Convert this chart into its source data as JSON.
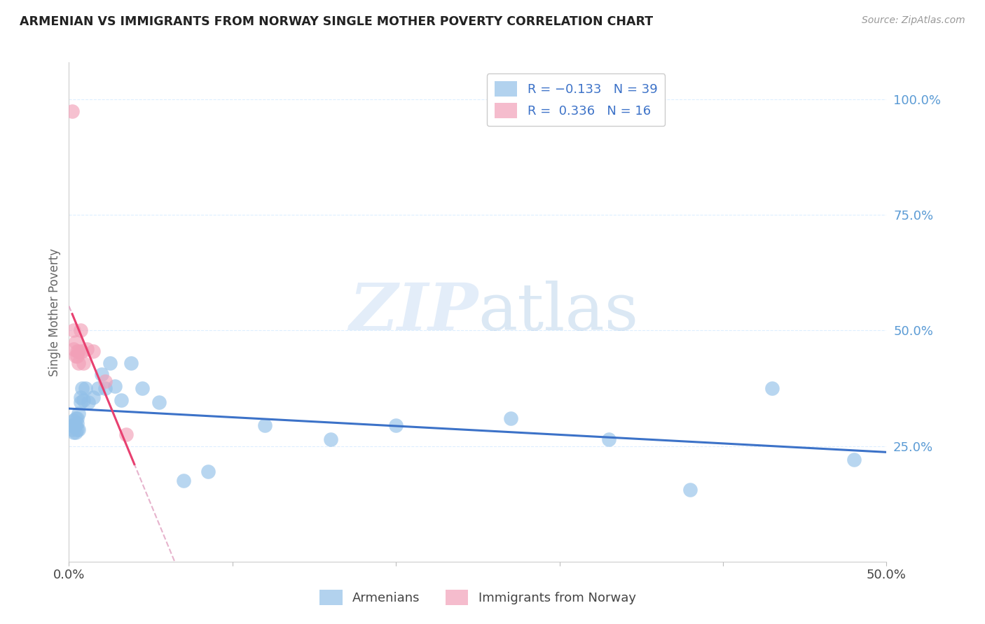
{
  "title": "ARMENIAN VS IMMIGRANTS FROM NORWAY SINGLE MOTHER POVERTY CORRELATION CHART",
  "source": "Source: ZipAtlas.com",
  "ylabel": "Single Mother Poverty",
  "right_yticks": [
    "100.0%",
    "75.0%",
    "50.0%",
    "25.0%"
  ],
  "right_ytick_vals": [
    1.0,
    0.75,
    0.5,
    0.25
  ],
  "xlim": [
    0.0,
    0.5
  ],
  "ylim": [
    0.0,
    1.08
  ],
  "watermark_zip": "ZIP",
  "watermark_atlas": "atlas",
  "blue_color": "#92C0E8",
  "pink_color": "#F2A0B8",
  "trendline_blue": "#3C72C8",
  "trendline_pink": "#E84070",
  "trendline_pink_dashed_color": "#E0A0C0",
  "armenians_x": [
    0.002,
    0.002,
    0.003,
    0.003,
    0.003,
    0.004,
    0.004,
    0.004,
    0.005,
    0.005,
    0.005,
    0.006,
    0.006,
    0.007,
    0.007,
    0.008,
    0.009,
    0.01,
    0.012,
    0.015,
    0.018,
    0.02,
    0.022,
    0.025,
    0.028,
    0.032,
    0.038,
    0.045,
    0.055,
    0.07,
    0.085,
    0.12,
    0.16,
    0.2,
    0.27,
    0.33,
    0.38,
    0.43,
    0.48
  ],
  "armenians_y": [
    0.285,
    0.295,
    0.305,
    0.295,
    0.28,
    0.28,
    0.295,
    0.31,
    0.3,
    0.31,
    0.285,
    0.32,
    0.285,
    0.345,
    0.355,
    0.375,
    0.35,
    0.375,
    0.345,
    0.355,
    0.375,
    0.405,
    0.375,
    0.43,
    0.38,
    0.35,
    0.43,
    0.375,
    0.345,
    0.175,
    0.195,
    0.295,
    0.265,
    0.295,
    0.31,
    0.265,
    0.155,
    0.375,
    0.22
  ],
  "norway_x": [
    0.002,
    0.003,
    0.003,
    0.004,
    0.004,
    0.005,
    0.005,
    0.006,
    0.006,
    0.007,
    0.008,
    0.009,
    0.011,
    0.015,
    0.022,
    0.035
  ],
  "norway_y": [
    0.975,
    0.46,
    0.5,
    0.445,
    0.475,
    0.455,
    0.445,
    0.43,
    0.455,
    0.5,
    0.455,
    0.43,
    0.46,
    0.455,
    0.39,
    0.275
  ],
  "trendline_arm_x_start": 0.0,
  "trendline_arm_x_end": 0.5,
  "trendline_nor_solid_x_start": 0.002,
  "trendline_nor_solid_x_end": 0.04,
  "trendline_nor_dashed_x_start": 0.0,
  "trendline_nor_dashed_x_end": 0.28
}
